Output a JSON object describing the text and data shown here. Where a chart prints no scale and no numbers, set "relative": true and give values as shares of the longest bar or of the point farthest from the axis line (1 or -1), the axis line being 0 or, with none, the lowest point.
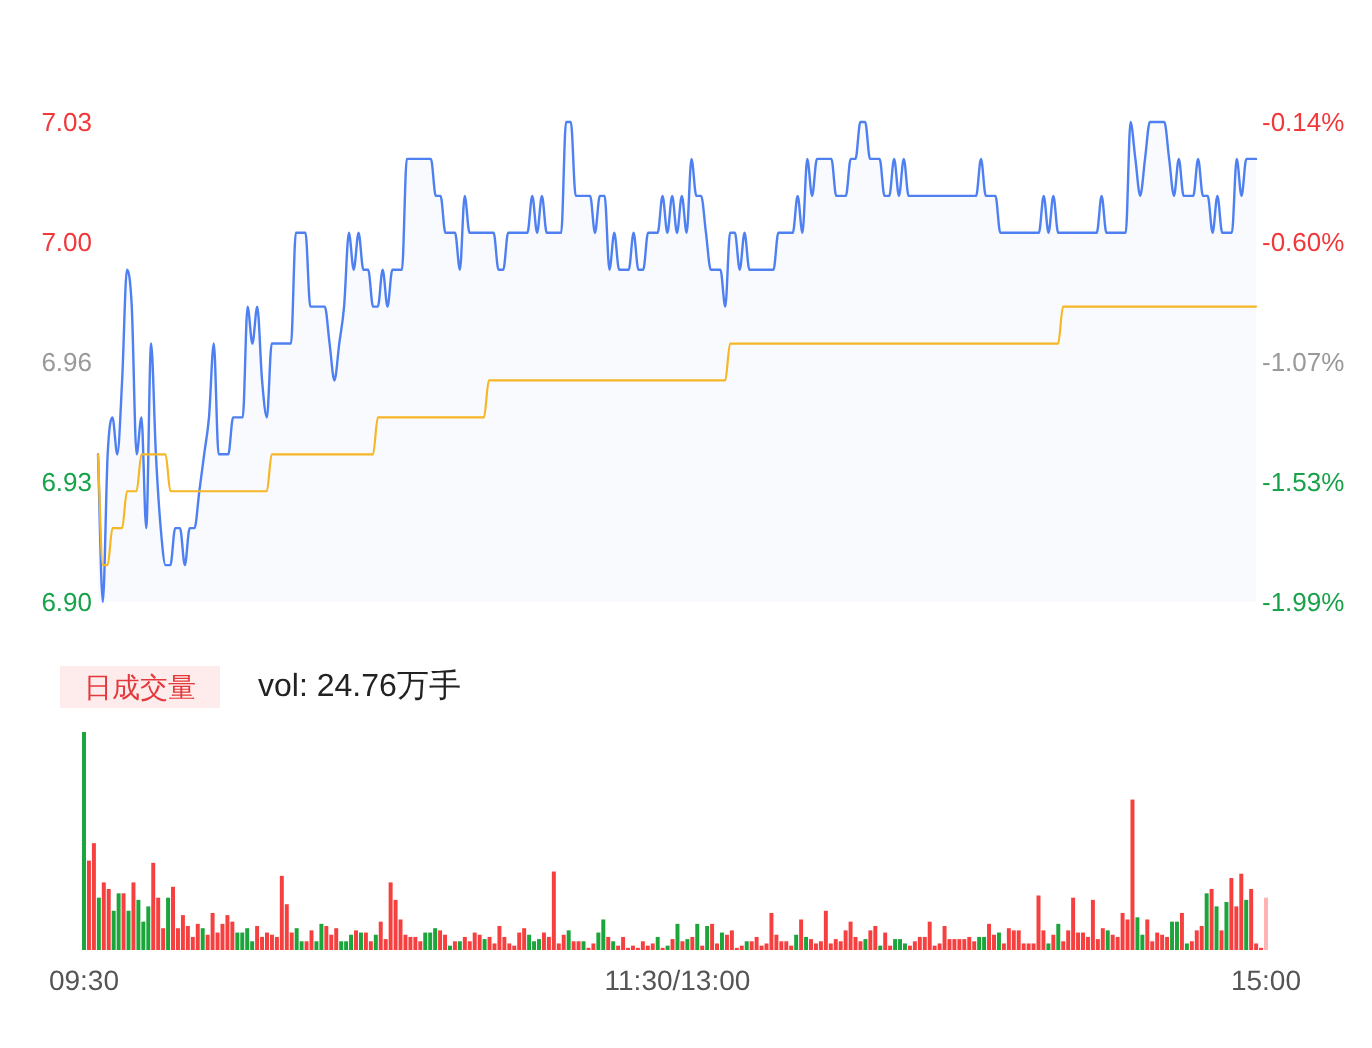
{
  "chart_data": [
    {
      "type": "area",
      "categories": [
        null,
        null,
        null,
        null,
        null,
        null,
        null,
        null,
        null,
        null,
        null,
        null,
        null,
        null,
        null,
        null,
        null,
        null,
        null,
        null,
        null,
        null,
        null,
        null,
        null,
        null,
        null,
        null,
        null,
        null,
        null,
        null,
        null,
        null,
        null,
        null,
        null,
        null,
        null,
        null,
        null,
        null,
        null,
        null,
        null,
        null,
        null,
        null,
        null,
        null,
        null,
        null,
        null,
        null,
        null,
        null,
        null,
        null,
        null,
        null,
        null,
        null,
        null,
        null,
        null,
        null,
        null,
        null,
        null,
        null,
        null,
        null,
        null,
        null,
        null,
        null,
        null,
        null,
        null,
        null,
        null,
        null,
        null,
        null,
        null,
        null,
        null,
        null,
        null,
        null,
        null,
        null,
        null,
        null,
        null,
        null,
        null,
        null,
        null,
        null,
        null,
        null,
        null,
        null,
        null,
        null,
        null,
        null,
        null,
        null,
        null,
        null,
        null,
        null,
        null,
        null,
        null,
        null,
        null,
        null,
        null,
        null,
        null,
        null,
        null,
        null,
        null,
        null,
        null,
        null,
        null,
        null,
        null,
        null,
        null,
        null,
        null,
        null,
        null,
        null,
        null,
        null,
        null,
        null,
        null,
        null,
        null,
        null,
        null,
        null,
        null,
        null,
        null,
        null,
        null,
        null,
        null,
        null,
        null,
        null,
        null,
        null,
        null,
        null,
        null,
        null,
        null,
        null,
        null,
        null,
        null,
        null,
        null,
        null,
        null,
        null,
        null,
        null,
        null,
        null,
        null,
        null,
        null,
        null,
        null,
        null,
        null,
        null,
        null,
        null,
        null,
        null,
        null,
        null,
        null,
        null,
        null,
        null,
        null,
        null,
        null,
        null,
        null,
        null,
        null,
        null,
        null,
        null,
        null,
        null,
        null,
        null,
        null,
        null,
        null,
        null,
        null,
        null,
        null,
        null,
        null,
        null,
        null,
        null,
        null,
        null,
        null,
        null,
        null,
        null,
        null,
        null,
        null,
        null,
        null,
        null,
        null,
        null,
        null,
        null,
        null
      ],
      "ylim": [
        6.9,
        7.03
      ],
      "yticks": [
        {
          "value": 6.9,
          "label": "6.90"
        },
        {
          "value": 6.9325,
          "label": "6.93"
        },
        {
          "value": 6.965,
          "label": "6.96"
        },
        {
          "value": 6.9975,
          "label": "7.00"
        },
        7.03
      ],
      "y2lim": [
        -1.99,
        -0.14
      ],
      "y2ticks": [
        {
          "value": -1.99,
          "label": "-1.99%"
        },
        {
          "value": -1.5275,
          "label": "-1.53%"
        },
        {
          "value": -1.065,
          "label": "-1.07%"
        },
        {
          "value": -0.6025,
          "label": "-0.60%"
        },
        {
          "value": -0.14,
          "label": "-0.14%"
        }
      ],
      "tick_labels": "y",
      "series": [
        {
          "type": "area",
          "color": "#4f80f2",
          "values": [
            6.94,
            6.9,
            6.94,
            6.95,
            6.94,
            6.96,
            6.99,
            6.98,
            6.94,
            6.95,
            6.92,
            6.97,
            6.94,
            6.92,
            6.91,
            6.91,
            6.92,
            6.92,
            6.91,
            6.92,
            6.92,
            6.93,
            6.94,
            6.95,
            6.97,
            6.94,
            6.94,
            6.94,
            6.95,
            6.95,
            6.95,
            6.98,
            6.97,
            6.98,
            6.96,
            6.95,
            6.97,
            6.97,
            6.97,
            6.97,
            6.97,
            7.0,
            7.0,
            7.0,
            6.98,
            6.98,
            6.98,
            6.98,
            6.97,
            6.96,
            6.97,
            6.98,
            7.0,
            6.99,
            7.0,
            6.99,
            6.99,
            6.98,
            6.98,
            6.99,
            6.98,
            6.99,
            6.99,
            6.99,
            7.02,
            7.02,
            7.02,
            7.02,
            7.02,
            7.02,
            7.01,
            7.01,
            7.0,
            7.0,
            7.0,
            6.99,
            7.01,
            7.0,
            7.0,
            7.0,
            7.0,
            7.0,
            7.0,
            6.99,
            6.99,
            7.0,
            7.0,
            7.0,
            7.0,
            7.0,
            7.01,
            7.0,
            7.01,
            7.0,
            7.0,
            7.0,
            7.0,
            7.03,
            7.03,
            7.01,
            7.01,
            7.01,
            7.01,
            7.0,
            7.01,
            7.01,
            6.99,
            7.0,
            6.99,
            6.99,
            6.99,
            7.0,
            6.99,
            6.99,
            7.0,
            7.0,
            7.0,
            7.01,
            7.0,
            7.01,
            7.0,
            7.01,
            7.0,
            7.02,
            7.01,
            7.01,
            7.0,
            6.99,
            6.99,
            6.99,
            6.98,
            7.0,
            7.0,
            6.99,
            7.0,
            6.99,
            6.99,
            6.99,
            6.99,
            6.99,
            6.99,
            7.0,
            7.0,
            7.0,
            7.0,
            7.01,
            7.0,
            7.02,
            7.01,
            7.02,
            7.02,
            7.02,
            7.02,
            7.01,
            7.01,
            7.01,
            7.02,
            7.02,
            7.03,
            7.03,
            7.02,
            7.02,
            7.02,
            7.01,
            7.01,
            7.02,
            7.01,
            7.02,
            7.01,
            7.01,
            7.01,
            7.01,
            7.01,
            7.01,
            7.01,
            7.01,
            7.01,
            7.01,
            7.01,
            7.01,
            7.01,
            7.01,
            7.01,
            7.02,
            7.01,
            7.01,
            7.01,
            7.0,
            7.0,
            7.0,
            7.0,
            7.0,
            7.0,
            7.0,
            7.0,
            7.0,
            7.01,
            7.0,
            7.01,
            7.0,
            7.0,
            7.0,
            7.0,
            7.0,
            7.0,
            7.0,
            7.0,
            7.0,
            7.01,
            7.0,
            7.0,
            7.0,
            7.0,
            7.0,
            7.03,
            7.02,
            7.01,
            7.02,
            7.03,
            7.03,
            7.03,
            7.03,
            7.02,
            7.01,
            7.02,
            7.01,
            7.01,
            7.01,
            7.02,
            7.01,
            7.01,
            7.0,
            7.01,
            7.0,
            7.0,
            7.0,
            7.02,
            7.01,
            7.02,
            7.02,
            7.02
          ]
        },
        {
          "type": "line",
          "color": "#f6b626",
          "values": [
            6.94,
            6.91,
            6.91,
            6.92,
            6.92,
            6.92,
            6.93,
            6.93,
            6.93,
            6.94,
            6.94,
            6.94,
            6.94,
            6.94,
            6.94,
            6.93,
            6.93,
            6.93,
            6.93,
            6.93,
            6.93,
            6.93,
            6.93,
            6.93,
            6.93,
            6.93,
            6.93,
            6.93,
            6.93,
            6.93,
            6.93,
            6.93,
            6.93,
            6.93,
            6.93,
            6.93,
            6.94,
            6.94,
            6.94,
            6.94,
            6.94,
            6.94,
            6.94,
            6.94,
            6.94,
            6.94,
            6.94,
            6.94,
            6.94,
            6.94,
            6.94,
            6.94,
            6.94,
            6.94,
            6.94,
            6.94,
            6.94,
            6.94,
            6.95,
            6.95,
            6.95,
            6.95,
            6.95,
            6.95,
            6.95,
            6.95,
            6.95,
            6.95,
            6.95,
            6.95,
            6.95,
            6.95,
            6.95,
            6.95,
            6.95,
            6.95,
            6.95,
            6.95,
            6.95,
            6.95,
            6.95,
            6.96,
            6.96,
            6.96,
            6.96,
            6.96,
            6.96,
            6.96,
            6.96,
            6.96,
            6.96,
            6.96,
            6.96,
            6.96,
            6.96,
            6.96,
            6.96,
            6.96,
            6.96,
            6.96,
            6.96,
            6.96,
            6.96,
            6.96,
            6.96,
            6.96,
            6.96,
            6.96,
            6.96,
            6.96,
            6.96,
            6.96,
            6.96,
            6.96,
            6.96,
            6.96,
            6.96,
            6.96,
            6.96,
            6.96,
            6.96,
            6.96,
            6.96,
            6.96,
            6.96,
            6.96,
            6.96,
            6.96,
            6.96,
            6.96,
            6.96,
            6.97,
            6.97,
            6.97,
            6.97,
            6.97,
            6.97,
            6.97,
            6.97,
            6.97,
            6.97,
            6.97,
            6.97,
            6.97,
            6.97,
            6.97,
            6.97,
            6.97,
            6.97,
            6.97,
            6.97,
            6.97,
            6.97,
            6.97,
            6.97,
            6.97,
            6.97,
            6.97,
            6.97,
            6.97,
            6.97,
            6.97,
            6.97,
            6.97,
            6.97,
            6.97,
            6.97,
            6.97,
            6.97,
            6.97,
            6.97,
            6.97,
            6.97,
            6.97,
            6.97,
            6.97,
            6.97,
            6.97,
            6.97,
            6.97,
            6.97,
            6.97,
            6.97,
            6.97,
            6.97,
            6.97,
            6.97,
            6.97,
            6.97,
            6.97,
            6.97,
            6.97,
            6.97,
            6.97,
            6.97,
            6.97,
            6.97,
            6.97,
            6.97,
            6.97,
            6.98,
            6.98,
            6.98,
            6.98,
            6.98,
            6.98,
            6.98,
            6.98,
            6.98,
            6.98,
            6.98,
            6.98,
            6.98,
            6.98,
            6.98,
            6.98,
            6.98,
            6.98,
            6.98,
            6.98,
            6.98,
            6.98,
            6.98,
            6.98,
            6.98,
            6.98,
            6.98,
            6.98,
            6.98,
            6.98,
            6.98,
            6.98,
            6.98,
            6.98,
            6.98,
            6.98,
            6.98,
            6.98,
            6.98,
            6.98,
            6.98
          ]
        }
      ]
    },
    {
      "type": "bar",
      "title": "日成交量",
      "subtitle": "vol: 24.76万手",
      "relative": true,
      "tick_labels": "x",
      "categories": [
        "09:30",
        null,
        null,
        null,
        null,
        null,
        null,
        null,
        null,
        null,
        null,
        null,
        null,
        null,
        null,
        null,
        null,
        null,
        null,
        null,
        null,
        null,
        null,
        null,
        null,
        null,
        null,
        null,
        null,
        null,
        null,
        null,
        null,
        null,
        null,
        null,
        null,
        null,
        null,
        null,
        null,
        null,
        null,
        null,
        null,
        null,
        null,
        null,
        null,
        null,
        null,
        null,
        null,
        null,
        null,
        null,
        null,
        null,
        null,
        null,
        null,
        null,
        null,
        null,
        null,
        null,
        null,
        null,
        null,
        null,
        null,
        null,
        null,
        null,
        null,
        null,
        null,
        null,
        null,
        null,
        null,
        null,
        null,
        null,
        null,
        null,
        null,
        null,
        null,
        null,
        null,
        null,
        null,
        null,
        null,
        null,
        null,
        null,
        null,
        null,
        null,
        null,
        null,
        null,
        null,
        null,
        null,
        null,
        null,
        null,
        null,
        null,
        null,
        null,
        null,
        null,
        null,
        null,
        null,
        null,
        "11:30/13:00",
        null,
        null,
        null,
        null,
        null,
        null,
        null,
        null,
        null,
        null,
        null,
        null,
        null,
        null,
        null,
        null,
        null,
        null,
        null,
        null,
        null,
        null,
        null,
        null,
        null,
        null,
        null,
        null,
        null,
        null,
        null,
        null,
        null,
        null,
        null,
        null,
        null,
        null,
        null,
        null,
        null,
        null,
        null,
        null,
        null,
        null,
        null,
        null,
        null,
        null,
        null,
        null,
        null,
        null,
        null,
        null,
        null,
        null,
        null,
        null,
        null,
        null,
        null,
        null,
        null,
        null,
        null,
        null,
        null,
        null,
        null,
        null,
        null,
        null,
        null,
        null,
        null,
        null,
        null,
        null,
        null,
        null,
        null,
        null,
        null,
        null,
        null,
        null,
        null,
        null,
        null,
        null,
        null,
        null,
        null,
        null,
        null,
        null,
        null,
        null,
        null,
        null,
        null,
        null,
        null,
        null,
        null,
        null,
        null,
        null,
        null,
        null,
        null,
        null,
        null,
        null,
        null,
        null,
        "15:00"
      ],
      "values": [
        1.0,
        0.41,
        0.49,
        0.24,
        0.31,
        0.28,
        0.18,
        0.26,
        0.26,
        0.18,
        0.31,
        0.23,
        0.13,
        0.2,
        0.4,
        0.24,
        0.1,
        0.24,
        0.29,
        0.1,
        0.16,
        0.11,
        0.06,
        0.12,
        0.1,
        0.07,
        0.17,
        0.08,
        0.12,
        0.16,
        0.13,
        0.08,
        0.08,
        0.1,
        0.04,
        0.11,
        0.06,
        0.08,
        0.07,
        0.06,
        0.34,
        0.21,
        0.08,
        0.1,
        0.04,
        0.04,
        0.09,
        0.04,
        0.12,
        0.11,
        0.07,
        0.1,
        0.04,
        0.04,
        0.07,
        0.09,
        0.08,
        0.08,
        0.04,
        0.07,
        0.13,
        0.05,
        0.31,
        0.23,
        0.14,
        0.07,
        0.06,
        0.06,
        0.04,
        0.08,
        0.08,
        0.1,
        0.09,
        0.07,
        0.02,
        0.04,
        0.04,
        0.06,
        0.04,
        0.08,
        0.07,
        0.05,
        0.06,
        0.03,
        0.11,
        0.06,
        0.03,
        0.02,
        0.08,
        0.1,
        0.07,
        0.04,
        0.05,
        0.08,
        0.06,
        0.36,
        0.03,
        0.07,
        0.09,
        0.04,
        0.04,
        0.04,
        0.01,
        0.03,
        0.08,
        0.14,
        0.06,
        0.04,
        0.02,
        0.06,
        0.01,
        0.02,
        0.01,
        0.04,
        0.02,
        0.03,
        0.06,
        0.01,
        0.02,
        0.05,
        0.12,
        0.04,
        0.05,
        0.06,
        0.12,
        0.02,
        0.11,
        0.12,
        0.03,
        0.08,
        0.07,
        0.09,
        0.01,
        0.02,
        0.04,
        0.04,
        0.06,
        0.02,
        0.03,
        0.17,
        0.07,
        0.04,
        0.04,
        0.02,
        0.07,
        0.14,
        0.06,
        0.05,
        0.03,
        0.04,
        0.18,
        0.03,
        0.05,
        0.04,
        0.09,
        0.13,
        0.06,
        0.04,
        0.05,
        0.09,
        0.11,
        0.02,
        0.08,
        0.02,
        0.05,
        0.05,
        0.03,
        0.02,
        0.04,
        0.06,
        0.06,
        0.13,
        0.02,
        0.03,
        0.11,
        0.05,
        0.05,
        0.05,
        0.05,
        0.06,
        0.04,
        0.06,
        0.06,
        0.12,
        0.07,
        0.08,
        0.03,
        0.1,
        0.09,
        0.09,
        0.03,
        0.03,
        0.03,
        0.25,
        0.09,
        0.03,
        0.07,
        0.12,
        0.04,
        0.09,
        0.24,
        0.08,
        0.08,
        0.06,
        0.23,
        0.05,
        0.1,
        0.09,
        0.07,
        0.06,
        0.17,
        0.14,
        0.69,
        0.15,
        0.07,
        0.14,
        0.04,
        0.08,
        0.07,
        0.06,
        0.13,
        0.13,
        0.17,
        0.03,
        0.04,
        0.09,
        0.11,
        0.26,
        0.28,
        0.2,
        0.09,
        0.22,
        0.33,
        0.2,
        0.35,
        0.23,
        0.28,
        0.03,
        0.01,
        0.24
      ],
      "colors": [
        "#1ca53b",
        "#f5403f",
        "#f5403f",
        "#1ca53b",
        "#f5403f",
        "#f5403f",
        "#1ca53b",
        "#1ca53b",
        "#f5403f",
        "#1ca53b",
        "#f5403f",
        "#1ca53b",
        "#1ca53b",
        "#1ca53b",
        "#f5403f",
        "#f5403f",
        "#f5403f",
        "#1ca53b",
        "#f5403f",
        "#f5403f",
        "#f5403f",
        "#f5403f",
        "#f5403f",
        "#f5403f",
        "#1ca53b",
        "#f5403f",
        "#f5403f",
        "#f5403f",
        "#f5403f",
        "#f5403f",
        "#f5403f",
        "#1ca53b",
        "#1ca53b",
        "#1ca53b",
        "#1ca53b",
        "#f5403f",
        "#f5403f",
        "#f5403f",
        "#f5403f",
        "#f5403f",
        "#f5403f",
        "#f5403f",
        "#f5403f",
        "#1ca53b",
        "#1ca53b",
        "#f5403f",
        "#f5403f",
        "#1ca53b",
        "#1ca53b",
        "#f5403f",
        "#f5403f",
        "#f5403f",
        "#1ca53b",
        "#1ca53b",
        "#1ca53b",
        "#f5403f",
        "#1ca53b",
        "#f5403f",
        "#f5403f",
        "#1ca53b",
        "#f5403f",
        "#f5403f",
        "#f5403f",
        "#f5403f",
        "#f5403f",
        "#f5403f",
        "#f5403f",
        "#f5403f",
        "#f5403f",
        "#1ca53b",
        "#1ca53b",
        "#1ca53b",
        "#f5403f",
        "#f5403f",
        "#1ca53b",
        "#f5403f",
        "#1ca53b",
        "#f5403f",
        "#f5403f",
        "#f5403f",
        "#f5403f",
        "#1ca53b",
        "#f5403f",
        "#f5403f",
        "#f5403f",
        "#f5403f",
        "#f5403f",
        "#f5403f",
        "#f5403f",
        "#f5403f",
        "#1ca53b",
        "#1ca53b",
        "#1ca53b",
        "#f5403f",
        "#f5403f",
        "#f5403f",
        "#f5403f",
        "#f5403f",
        "#1ca53b",
        "#f5403f",
        "#f5403f",
        "#1ca53b",
        "#f5403f",
        "#f5403f",
        "#1ca53b",
        "#1ca53b",
        "#f5403f",
        "#1ca53b",
        "#f5403f",
        "#f5403f",
        "#f5403f",
        "#f5403f",
        "#f5403f",
        "#f5403f",
        "#f5403f",
        "#f5403f",
        "#1ca53b",
        "#f5403f",
        "#1ca53b",
        "#f5403f",
        "#1ca53b",
        "#f5403f",
        "#1ca53b",
        "#f5403f",
        "#1ca53b",
        "#f5403f",
        "#1ca53b",
        "#f5403f",
        "#f5403f",
        "#1ca53b",
        "#f5403f",
        "#f5403f",
        "#f5403f",
        "#f5403f",
        "#1ca53b",
        "#f5403f",
        "#f5403f",
        "#f5403f",
        "#f5403f",
        "#f5403f",
        "#f5403f",
        "#f5403f",
        "#f5403f",
        "#f5403f",
        "#1ca53b",
        "#f5403f",
        "#1ca53b",
        "#f5403f",
        "#f5403f",
        "#f5403f",
        "#f5403f",
        "#f5403f",
        "#f5403f",
        "#f5403f",
        "#f5403f",
        "#f5403f",
        "#f5403f",
        "#f5403f",
        "#1ca53b",
        "#f5403f",
        "#f5403f",
        "#1ca53b",
        "#f5403f",
        "#f5403f",
        "#1ca53b",
        "#1ca53b",
        "#1ca53b",
        "#f5403f",
        "#f5403f",
        "#f5403f",
        "#f5403f",
        "#f5403f",
        "#f5403f",
        "#f5403f",
        "#f5403f",
        "#f5403f",
        "#f5403f",
        "#f5403f",
        "#f5403f",
        "#f5403f",
        "#f5403f",
        "#1ca53b",
        "#1ca53b",
        "#f5403f",
        "#f5403f",
        "#1ca53b",
        "#f5403f",
        "#f5403f",
        "#f5403f",
        "#f5403f",
        "#f5403f",
        "#f5403f",
        "#f5403f",
        "#f5403f",
        "#f5403f",
        "#1ca53b",
        "#f5403f",
        "#1ca53b",
        "#f5403f",
        "#f5403f",
        "#f5403f",
        "#f5403f",
        "#f5403f",
        "#f5403f",
        "#f5403f",
        "#f5403f",
        "#f5403f",
        "#1ca53b",
        "#f5403f",
        "#f5403f",
        "#f5403f",
        "#f5403f",
        "#f5403f",
        "#1ca53b",
        "#1ca53b",
        "#f5403f",
        "#f5403f",
        "#f5403f",
        "#f5403f",
        "#f5403f",
        "#1ca53b",
        "#1ca53b",
        "#f5403f",
        "#1ca53b",
        "#f5403f",
        "#f5403f",
        "#f5403f",
        "#1ca53b",
        "#f5403f",
        "#1ca53b",
        "#f5403f",
        "#1ca53b",
        "#f5403f",
        "#f5403f",
        "#f5403f",
        "#1ca53b",
        "#f5403f",
        "#f5403f",
        "#f5403f",
        "#ffb2b2"
      ]
    }
  ]
}
